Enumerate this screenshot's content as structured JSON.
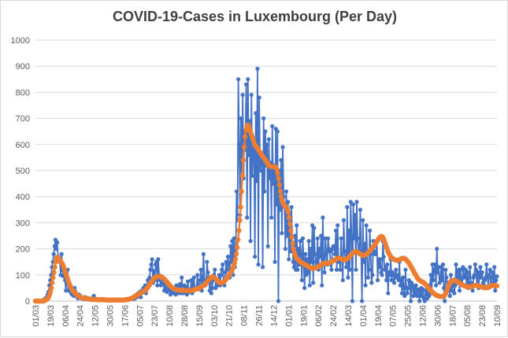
{
  "title": "COVID-19-Cases in Luxembourg (Per Day)",
  "colors": {
    "daily": "#4472C4",
    "average": "#ED7D31",
    "grid": "#d9d9d9",
    "axis_text": "#595959",
    "title_text": "#404040"
  },
  "chart_data": {
    "type": "line",
    "title": "COVID-19-Cases in Luxembourg (Per Day)",
    "xlabel": "",
    "ylabel": "",
    "ylim": [
      0,
      1000
    ],
    "y_ticks": [
      0,
      100,
      200,
      300,
      400,
      500,
      600,
      700,
      800,
      900,
      1000
    ],
    "x_tick_labels": [
      "01/03",
      "19/03",
      "06/04",
      "24/04",
      "12/05",
      "30/05",
      "17/06",
      "05/07",
      "23/07",
      "10/08",
      "28/08",
      "15/09",
      "03/10",
      "21/10",
      "08/11",
      "26/11",
      "14/12",
      "01/01",
      "19/01",
      "06/02",
      "24/02",
      "14/03",
      "01/04",
      "19/04",
      "07/05",
      "25/05",
      "12/06",
      "30/06",
      "18/07",
      "05/08",
      "23/08",
      "10/09"
    ],
    "grid": true,
    "legend": "none",
    "series": [
      {
        "style": "daily",
        "color": "#4472C4",
        "values": [
          0,
          0,
          0,
          0,
          0,
          0,
          0,
          0,
          0,
          0,
          5,
          10,
          10,
          14,
          25,
          35,
          60,
          80,
          100,
          130,
          150,
          180,
          210,
          235,
          200,
          225,
          170,
          160,
          150,
          100,
          180,
          120,
          95,
          120,
          80,
          40,
          70,
          120,
          40,
          50,
          60,
          30,
          25,
          40,
          20,
          50,
          35,
          20,
          15,
          10,
          25,
          20,
          18,
          10,
          12,
          8,
          10,
          15,
          10,
          8,
          12,
          8,
          7,
          5,
          10,
          6,
          6,
          20,
          5,
          6,
          8,
          6,
          5,
          6,
          4,
          6,
          8,
          5,
          4,
          6,
          3,
          5,
          4,
          6,
          3,
          3,
          4,
          4,
          3,
          5,
          3,
          2,
          4,
          6,
          3,
          4,
          3,
          5,
          4,
          3,
          6,
          4,
          5,
          4,
          6,
          8,
          6,
          5,
          8,
          10,
          12,
          10,
          15,
          8,
          18,
          12,
          25,
          16,
          30,
          20,
          35,
          15,
          40,
          35,
          50,
          40,
          60,
          30,
          55,
          80,
          60,
          90,
          120,
          140,
          160,
          70,
          115,
          80,
          140,
          150,
          60,
          160,
          100,
          80,
          60,
          95,
          70,
          65,
          40,
          50,
          70,
          35,
          45,
          60,
          40,
          25,
          50,
          30,
          35,
          40,
          45,
          25,
          60,
          50,
          30,
          50,
          65,
          30,
          90,
          40,
          30,
          60,
          35,
          55,
          25,
          75,
          40,
          35,
          45,
          80,
          30,
          65,
          90,
          50,
          45,
          50,
          100,
          60,
          45,
          80,
          120,
          40,
          90,
          180,
          80,
          60,
          70,
          150,
          110,
          90,
          40,
          70,
          30,
          50,
          80,
          100,
          120,
          50,
          60,
          60,
          80,
          100,
          60,
          100,
          120,
          140,
          70,
          60,
          110,
          150,
          120,
          170,
          140,
          90,
          210,
          150,
          230,
          100,
          240,
          130,
          190,
          420,
          310,
          850,
          600,
          330,
          700,
          500,
          790,
          470,
          650,
          580,
          830,
          320,
          850,
          560,
          690,
          230,
          790,
          480,
          570,
          620,
          170,
          720,
          460,
          890,
          140,
          780,
          500,
          540,
          560,
          130,
          700,
          420,
          650,
          520,
          600,
          210,
          620,
          470,
          530,
          320,
          670,
          450,
          520,
          150,
          660,
          370,
          650,
          0,
          500,
          350,
          540,
          260,
          590,
          400,
          360,
          200,
          420,
          250,
          380,
          160,
          340,
          190,
          360,
          220,
          150,
          130,
          250,
          120,
          290,
          120,
          200,
          140,
          230,
          180,
          80,
          240,
          160,
          50,
          180,
          100,
          160,
          110,
          230,
          60,
          200,
          150,
          290,
          70,
          280,
          180,
          150,
          140,
          240,
          120,
          200,
          170,
          250,
          60,
          320,
          160,
          110,
          240,
          180,
          140,
          240,
          200,
          190,
          140,
          120,
          200,
          210,
          210,
          180,
          270,
          120,
          290,
          150,
          160,
          120,
          240,
          160,
          80,
          310,
          190,
          160,
          130,
          360,
          90,
          270,
          120,
          380,
          250,
          0,
          370,
          240,
          330,
          120,
          380,
          240,
          190,
          180,
          350,
          190,
          0,
          310,
          150,
          220,
          60,
          290,
          180,
          90,
          120,
          270,
          180,
          70,
          100,
          230,
          190,
          180,
          180,
          230,
          80,
          160,
          130,
          160,
          110,
          100,
          230,
          170,
          120,
          130,
          80,
          140,
          30,
          110,
          100,
          160,
          80,
          110,
          100,
          70,
          100,
          120,
          90,
          100,
          80,
          150,
          60,
          80,
          30,
          90,
          50,
          20,
          120,
          50,
          30,
          50,
          80,
          70,
          0,
          70,
          60,
          20,
          50,
          30,
          60,
          20,
          45,
          40,
          0,
          30,
          50,
          20,
          45,
          10,
          0,
          40,
          25,
          10,
          30,
          20,
          60,
          100,
          30,
          140,
          80,
          120,
          140,
          60,
          200,
          110,
          130,
          70,
          90,
          130,
          80,
          140,
          50,
          0,
          120,
          90,
          40,
          70,
          60,
          20,
          100,
          40,
          60,
          80,
          30,
          60,
          140,
          90,
          110,
          120,
          40,
          120,
          80,
          60,
          130,
          90,
          100,
          120,
          60,
          110,
          50,
          90,
          130,
          70,
          60,
          40,
          90,
          100,
          140,
          120,
          60,
          110,
          50,
          100,
          130,
          90,
          110,
          70,
          60,
          80,
          90,
          140,
          100,
          50,
          100,
          120,
          60,
          90,
          110,
          70,
          130,
          40,
          80,
          95
        ]
      },
      {
        "style": "average",
        "color": "#ED7D31",
        "values": [
          0,
          0,
          0,
          0,
          0,
          0,
          0,
          0,
          0,
          0,
          2,
          3,
          5,
          7,
          10,
          15,
          25,
          35,
          50,
          70,
          90,
          110,
          130,
          150,
          165,
          168,
          165,
          160,
          155,
          150,
          145,
          140,
          130,
          120,
          110,
          100,
          90,
          80,
          70,
          62,
          55,
          48,
          42,
          38,
          34,
          30,
          27,
          24,
          21,
          19,
          17,
          15,
          14,
          13,
          12,
          11,
          10,
          10,
          9,
          9,
          8,
          8,
          7,
          7,
          7,
          6,
          6,
          6,
          6,
          6,
          6,
          5,
          5,
          5,
          5,
          5,
          5,
          5,
          5,
          5,
          4,
          4,
          4,
          4,
          4,
          4,
          4,
          4,
          4,
          4,
          4,
          4,
          4,
          4,
          4,
          4,
          4,
          4,
          4,
          4,
          4,
          4,
          5,
          5,
          6,
          6,
          7,
          8,
          9,
          10,
          12,
          14,
          16,
          18,
          20,
          22,
          24,
          26,
          28,
          30,
          32,
          34,
          36,
          38,
          40,
          43,
          46,
          50,
          55,
          60,
          65,
          70,
          75,
          80,
          85,
          88,
          90,
          92,
          93,
          94,
          95,
          95,
          94,
          92,
          90,
          88,
          85,
          82,
          78,
          74,
          70,
          66,
          62,
          58,
          55,
          52,
          50,
          48,
          46,
          45,
          44,
          43,
          42,
          42,
          42,
          41,
          41,
          41,
          41,
          41,
          40,
          40,
          40,
          40,
          40,
          40,
          40,
          40,
          41,
          42,
          43,
          44,
          45,
          46,
          47,
          48,
          50,
          52,
          54,
          56,
          58,
          60,
          63,
          66,
          70,
          74,
          78,
          82,
          86,
          90,
          92,
          93,
          92,
          90,
          87,
          84,
          80,
          77,
          74,
          72,
          70,
          70,
          70,
          72,
          75,
          78,
          82,
          86,
          90,
          95,
          100,
          105,
          110,
          118,
          125,
          135,
          145,
          160,
          180,
          205,
          235,
          270,
          310,
          360,
          420,
          480,
          540,
          590,
          630,
          655,
          670,
          675,
          670,
          660,
          650,
          640,
          630,
          620,
          610,
          600,
          595,
          590,
          585,
          580,
          575,
          570,
          565,
          560,
          555,
          550,
          545,
          540,
          535,
          530,
          525,
          520,
          518,
          516,
          515,
          515,
          515,
          515,
          515,
          512,
          505,
          490,
          470,
          445,
          420,
          400,
          385,
          375,
          368,
          365,
          362,
          358,
          350,
          340,
          320,
          295,
          270,
          245,
          220,
          200,
          185,
          175,
          168,
          162,
          158,
          155,
          152,
          150,
          148,
          146,
          144,
          142,
          140,
          138,
          136,
          134,
          132,
          130,
          128,
          126,
          125,
          125,
          125,
          126,
          127,
          128,
          130,
          132,
          134,
          136,
          138,
          140,
          142,
          144,
          145,
          145,
          145,
          145,
          145,
          146,
          147,
          148,
          150,
          152,
          154,
          156,
          158,
          160,
          162,
          164,
          165,
          165,
          164,
          162,
          160,
          159,
          158,
          158,
          159,
          160,
          162,
          165,
          168,
          172,
          176,
          180,
          183,
          186,
          188,
          189,
          190,
          189,
          187,
          185,
          182,
          180,
          178,
          176,
          175,
          175,
          176,
          178,
          180,
          183,
          186,
          190,
          194,
          198,
          202,
          206,
          210,
          215,
          220,
          225,
          230,
          235,
          240,
          244,
          247,
          248,
          246,
          240,
          232,
          222,
          212,
          202,
          192,
          184,
          178,
          172,
          168,
          165,
          162,
          160,
          158,
          157,
          156,
          156,
          157,
          158,
          160,
          162,
          163,
          164,
          164,
          163,
          161,
          158,
          154,
          150,
          145,
          140,
          134,
          128,
          122,
          116,
          110,
          104,
          98,
          92,
          87,
          83,
          80,
          78,
          76,
          74,
          72,
          70,
          67,
          64,
          60,
          56,
          52,
          48,
          44,
          40,
          36,
          33,
          30,
          27,
          25,
          23,
          21,
          20,
          19,
          18,
          17,
          17,
          17,
          18,
          20,
          24,
          30,
          38,
          48,
          58,
          66,
          72,
          76,
          78,
          79,
          80,
          79,
          78,
          76,
          74,
          72,
          70,
          68,
          66,
          64,
          62,
          60,
          58,
          57,
          56,
          55,
          54,
          54,
          54,
          55,
          56,
          57,
          58,
          59,
          60,
          60,
          60,
          59,
          58,
          57,
          56,
          55,
          54,
          53,
          52,
          51,
          51,
          52,
          53,
          54,
          55,
          56,
          57,
          58,
          59,
          60,
          60,
          60,
          59,
          58
        ]
      }
    ]
  }
}
